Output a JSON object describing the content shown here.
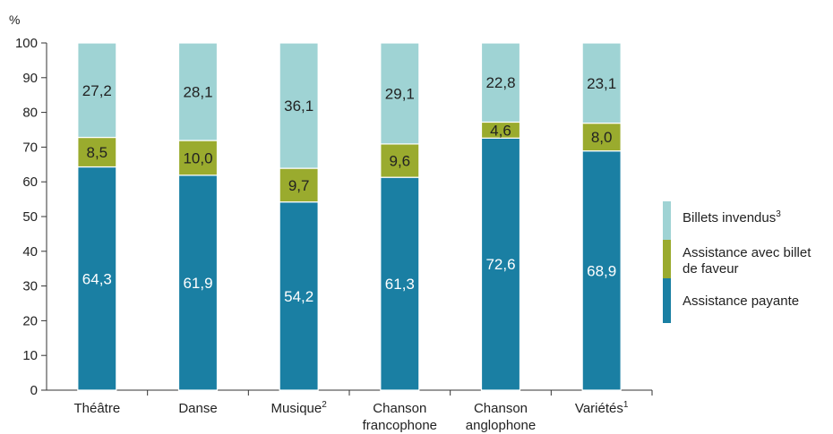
{
  "chart_data": {
    "type": "bar",
    "stacked": true,
    "unit_label": "%",
    "ylim": [
      0,
      100
    ],
    "yticks": [
      0,
      10,
      20,
      30,
      40,
      50,
      60,
      70,
      80,
      90,
      100
    ],
    "categories": [
      {
        "lines": [
          "Théâtre"
        ],
        "sup": ""
      },
      {
        "lines": [
          "Danse"
        ],
        "sup": ""
      },
      {
        "lines": [
          "Musique"
        ],
        "sup": "2"
      },
      {
        "lines": [
          "Chanson",
          "francophone"
        ],
        "sup": ""
      },
      {
        "lines": [
          "Chanson",
          "anglophone"
        ],
        "sup": ""
      },
      {
        "lines": [
          "Variétés"
        ],
        "sup": "1"
      }
    ],
    "series": [
      {
        "name": "Assistance payante",
        "color": "#1a7fa3",
        "label_color": "#ffffff",
        "values": [
          64.3,
          61.9,
          54.2,
          61.3,
          72.6,
          68.9
        ],
        "labels": [
          "64,3",
          "61,9",
          "54,2",
          "61,3",
          "72,6",
          "68,9"
        ]
      },
      {
        "name_lines": [
          "Assistance avec billet",
          "de faveur"
        ],
        "color": "#9aab2e",
        "label_color": "#222222",
        "values": [
          8.5,
          10.0,
          9.7,
          9.6,
          4.6,
          8.0
        ],
        "labels": [
          "8,5",
          "10,0",
          "9,7",
          "9,6",
          "4,6",
          "8,0"
        ]
      },
      {
        "name": "Billets invendus",
        "name_sup": "3",
        "color": "#9fd3d4",
        "label_color": "#222222",
        "values": [
          27.2,
          28.1,
          36.1,
          29.1,
          22.8,
          23.1
        ],
        "labels": [
          "27,2",
          "28,1",
          "36,1",
          "29,1",
          "22,8",
          "23,1"
        ]
      }
    ],
    "legend": {
      "placement": "right",
      "order": [
        2,
        1,
        0
      ]
    },
    "grid": false
  }
}
